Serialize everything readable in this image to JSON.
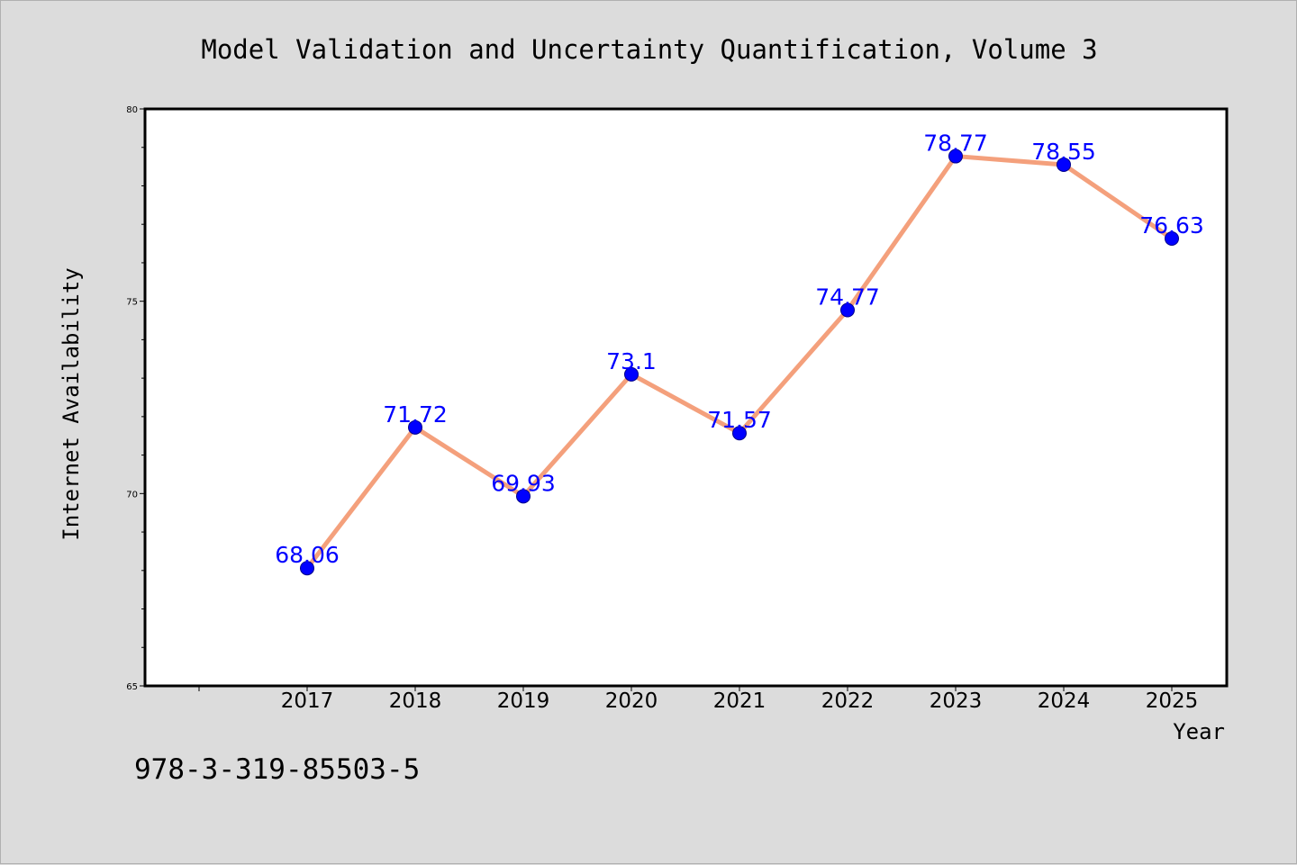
{
  "chart_data": {
    "type": "line",
    "title": "Model Validation and Uncertainty Quantification, Volume 3",
    "xlabel": "Year",
    "ylabel": "Internet Availability",
    "categories": [
      "2017",
      "2018",
      "2019",
      "2020",
      "2021",
      "2022",
      "2023",
      "2024",
      "2025"
    ],
    "series": [
      {
        "values": [
          68.06,
          71.72,
          69.93,
          73.1,
          71.57,
          74.77,
          78.77,
          78.55,
          76.63
        ],
        "labels": [
          "68.06",
          "71.72",
          "69.93",
          "73.1",
          "71.57",
          "74.77",
          "78.77",
          "78.55",
          "76.63"
        ]
      }
    ],
    "ylim": [
      65,
      80
    ],
    "yticks": [
      "65",
      "70",
      "75",
      "80"
    ],
    "grid": false,
    "legend": "none",
    "colors": {
      "line": "#f4a07c",
      "marker": "#0000ff",
      "data_label": "#0000ff",
      "background": "#dcdcdc",
      "plot_area": "#ffffff"
    }
  },
  "footer": {
    "isbn": "978-3-319-85503-5"
  }
}
